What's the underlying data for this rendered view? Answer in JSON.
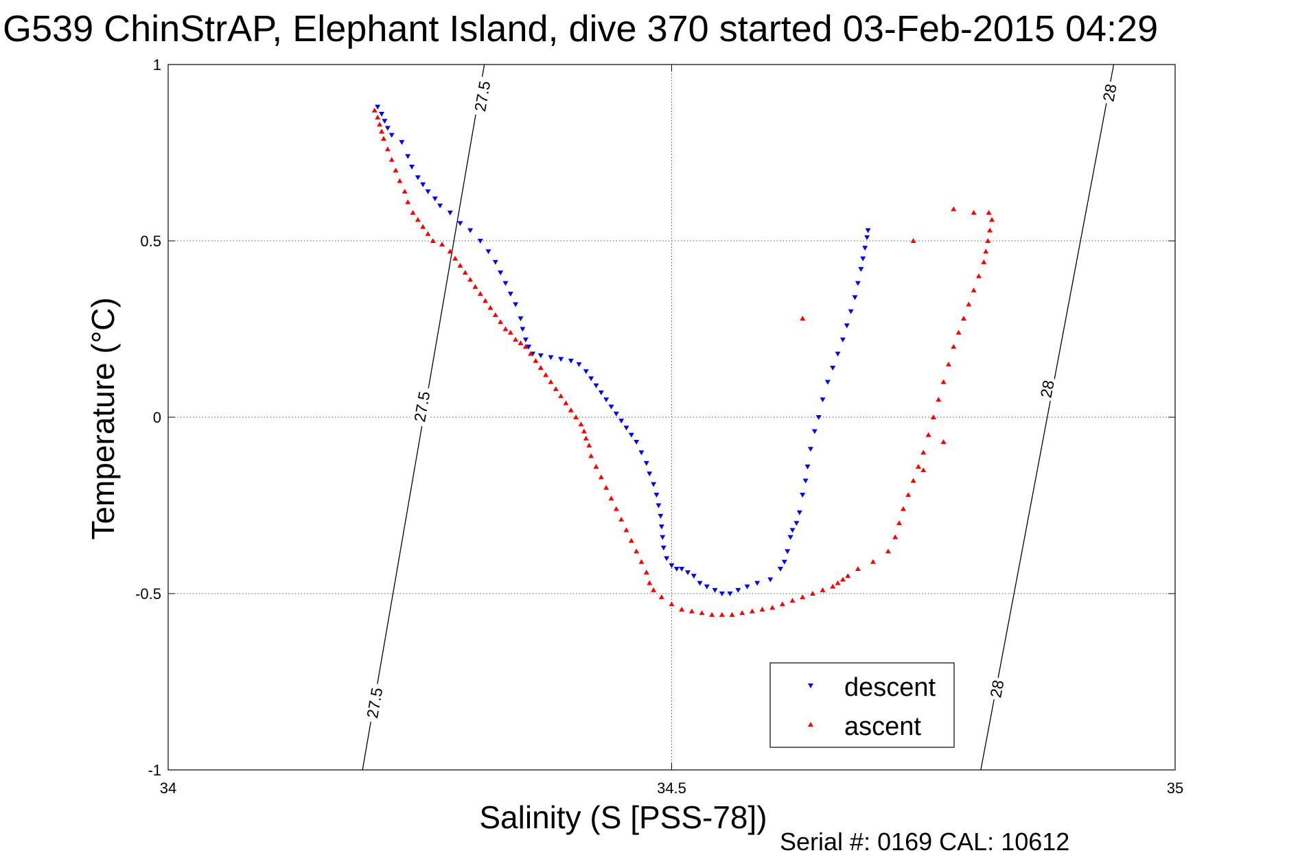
{
  "title": "G539 ChinStrAP, Elephant Island, dive 370 started 03-Feb-2015 04:29",
  "serial": "Serial #: 0169 CAL: 10612",
  "chart_data": {
    "type": "scatter",
    "title": "G539 ChinStrAP, Elephant Island, dive 370 started 03-Feb-2015 04:29",
    "xlabel": "Salinity (S [PSS-78])",
    "ylabel": "Temperature (°C)",
    "xlim": [
      34,
      35
    ],
    "ylim": [
      -1,
      1
    ],
    "xticks": [
      34,
      34.5,
      35
    ],
    "xtick_labels": [
      "34",
      "34.5",
      "35"
    ],
    "yticks": [
      -1,
      -0.5,
      0,
      0.5,
      1
    ],
    "ytick_labels": [
      "-1",
      "-0.5",
      "0",
      "0.5",
      "1"
    ],
    "grid": true,
    "legend": {
      "position": "bottom-right",
      "entries": [
        "descent",
        "ascent"
      ]
    },
    "contours": [
      {
        "level": "27.5",
        "points": [
          [
            34.193,
            -1.0
          ],
          [
            34.314,
            1.0
          ]
        ],
        "label_positions": [
          [
            34.205,
            -0.81
          ],
          [
            34.252,
            0.03
          ],
          [
            34.312,
            0.91
          ]
        ]
      },
      {
        "level": "28",
        "points": [
          [
            34.807,
            -1.0
          ],
          [
            34.939,
            1.0
          ]
        ],
        "label_positions": [
          [
            34.823,
            -0.77
          ],
          [
            34.873,
            0.08
          ],
          [
            34.935,
            0.92
          ]
        ]
      }
    ],
    "series": [
      {
        "name": "descent",
        "marker": "triangle-down",
        "color": "#0000ff",
        "points": [
          [
            34.208,
            0.88
          ],
          [
            34.212,
            0.86
          ],
          [
            34.215,
            0.84
          ],
          [
            34.218,
            0.82
          ],
          [
            34.222,
            0.8
          ],
          [
            34.232,
            0.78
          ],
          [
            34.238,
            0.74
          ],
          [
            34.242,
            0.71
          ],
          [
            34.248,
            0.68
          ],
          [
            34.253,
            0.66
          ],
          [
            34.258,
            0.64
          ],
          [
            34.265,
            0.62
          ],
          [
            34.27,
            0.6
          ],
          [
            34.28,
            0.58
          ],
          [
            34.29,
            0.55
          ],
          [
            34.3,
            0.53
          ],
          [
            34.31,
            0.5
          ],
          [
            34.318,
            0.47
          ],
          [
            34.325,
            0.44
          ],
          [
            34.33,
            0.41
          ],
          [
            34.335,
            0.38
          ],
          [
            34.34,
            0.35
          ],
          [
            34.345,
            0.32
          ],
          [
            34.35,
            0.28
          ],
          [
            34.352,
            0.25
          ],
          [
            34.355,
            0.22
          ],
          [
            34.358,
            0.2
          ],
          [
            34.362,
            0.18
          ],
          [
            34.37,
            0.175
          ],
          [
            34.38,
            0.17
          ],
          [
            34.39,
            0.165
          ],
          [
            34.4,
            0.16
          ],
          [
            34.408,
            0.15
          ],
          [
            34.415,
            0.13
          ],
          [
            34.42,
            0.11
          ],
          [
            34.425,
            0.09
          ],
          [
            34.43,
            0.07
          ],
          [
            34.435,
            0.05
          ],
          [
            34.44,
            0.03
          ],
          [
            34.445,
            0.01
          ],
          [
            34.45,
            -0.01
          ],
          [
            34.455,
            -0.03
          ],
          [
            34.46,
            -0.05
          ],
          [
            34.465,
            -0.07
          ],
          [
            34.47,
            -0.1
          ],
          [
            34.475,
            -0.13
          ],
          [
            34.478,
            -0.16
          ],
          [
            34.482,
            -0.19
          ],
          [
            34.485,
            -0.22
          ],
          [
            34.487,
            -0.25
          ],
          [
            34.489,
            -0.28
          ],
          [
            34.49,
            -0.31
          ],
          [
            34.491,
            -0.34
          ],
          [
            34.492,
            -0.37
          ],
          [
            34.495,
            -0.4
          ],
          [
            34.5,
            -0.42
          ],
          [
            34.505,
            -0.43
          ],
          [
            34.51,
            -0.43
          ],
          [
            34.516,
            -0.44
          ],
          [
            34.522,
            -0.45
          ],
          [
            34.528,
            -0.47
          ],
          [
            34.535,
            -0.48
          ],
          [
            34.543,
            -0.49
          ],
          [
            34.55,
            -0.5
          ],
          [
            34.558,
            -0.5
          ],
          [
            34.566,
            -0.49
          ],
          [
            34.575,
            -0.48
          ],
          [
            34.585,
            -0.47
          ],
          [
            34.598,
            -0.46
          ],
          [
            34.608,
            -0.43
          ],
          [
            34.612,
            -0.41
          ],
          [
            34.615,
            -0.38
          ],
          [
            34.618,
            -0.34
          ],
          [
            34.62,
            -0.32
          ],
          [
            34.624,
            -0.3
          ],
          [
            34.627,
            -0.27
          ],
          [
            34.63,
            -0.22
          ],
          [
            34.633,
            -0.18
          ],
          [
            34.635,
            -0.14
          ],
          [
            34.638,
            -0.09
          ],
          [
            34.642,
            -0.04
          ],
          [
            34.646,
            0.0
          ],
          [
            34.65,
            0.05
          ],
          [
            34.655,
            0.1
          ],
          [
            34.66,
            0.14
          ],
          [
            34.665,
            0.18
          ],
          [
            34.67,
            0.22
          ],
          [
            34.674,
            0.26
          ],
          [
            34.678,
            0.3
          ],
          [
            34.682,
            0.34
          ],
          [
            34.685,
            0.38
          ],
          [
            34.688,
            0.42
          ],
          [
            34.69,
            0.45
          ],
          [
            34.692,
            0.48
          ],
          [
            34.694,
            0.51
          ],
          [
            34.695,
            0.53
          ]
        ]
      },
      {
        "name": "ascent",
        "marker": "triangle-up",
        "color": "#ff0000",
        "points": [
          [
            34.205,
            0.87
          ],
          [
            34.208,
            0.85
          ],
          [
            34.21,
            0.83
          ],
          [
            34.212,
            0.81
          ],
          [
            34.214,
            0.79
          ],
          [
            34.218,
            0.76
          ],
          [
            34.222,
            0.73
          ],
          [
            34.226,
            0.7
          ],
          [
            34.23,
            0.67
          ],
          [
            34.235,
            0.64
          ],
          [
            34.238,
            0.61
          ],
          [
            34.243,
            0.58
          ],
          [
            34.248,
            0.56
          ],
          [
            34.253,
            0.54
          ],
          [
            34.258,
            0.52
          ],
          [
            34.263,
            0.5
          ],
          [
            34.272,
            0.49
          ],
          [
            34.28,
            0.47
          ],
          [
            34.285,
            0.45
          ],
          [
            34.29,
            0.43
          ],
          [
            34.295,
            0.41
          ],
          [
            34.3,
            0.39
          ],
          [
            34.305,
            0.37
          ],
          [
            34.31,
            0.35
          ],
          [
            34.315,
            0.33
          ],
          [
            34.32,
            0.31
          ],
          [
            34.325,
            0.29
          ],
          [
            34.33,
            0.27
          ],
          [
            34.335,
            0.25
          ],
          [
            34.34,
            0.24
          ],
          [
            34.345,
            0.22
          ],
          [
            34.35,
            0.21
          ],
          [
            34.355,
            0.2
          ],
          [
            34.36,
            0.18
          ],
          [
            34.365,
            0.16
          ],
          [
            34.37,
            0.14
          ],
          [
            34.375,
            0.12
          ],
          [
            34.38,
            0.1
          ],
          [
            34.385,
            0.08
          ],
          [
            34.39,
            0.06
          ],
          [
            34.395,
            0.04
          ],
          [
            34.4,
            0.02
          ],
          [
            34.405,
            0.0
          ],
          [
            34.41,
            -0.02
          ],
          [
            34.413,
            -0.04
          ],
          [
            34.415,
            -0.06
          ],
          [
            34.418,
            -0.08
          ],
          [
            34.42,
            -0.11
          ],
          [
            34.425,
            -0.14
          ],
          [
            34.43,
            -0.17
          ],
          [
            34.435,
            -0.2
          ],
          [
            34.44,
            -0.23
          ],
          [
            34.445,
            -0.26
          ],
          [
            34.45,
            -0.29
          ],
          [
            34.455,
            -0.32
          ],
          [
            34.46,
            -0.35
          ],
          [
            34.465,
            -0.38
          ],
          [
            34.47,
            -0.41
          ],
          [
            34.475,
            -0.44
          ],
          [
            34.478,
            -0.47
          ],
          [
            34.482,
            -0.49
          ],
          [
            34.49,
            -0.51
          ],
          [
            34.5,
            -0.53
          ],
          [
            34.51,
            -0.545
          ],
          [
            34.52,
            -0.55
          ],
          [
            34.53,
            -0.555
          ],
          [
            34.54,
            -0.56
          ],
          [
            34.55,
            -0.56
          ],
          [
            34.56,
            -0.56
          ],
          [
            34.57,
            -0.555
          ],
          [
            34.58,
            -0.55
          ],
          [
            34.59,
            -0.545
          ],
          [
            34.6,
            -0.54
          ],
          [
            34.61,
            -0.53
          ],
          [
            34.62,
            -0.52
          ],
          [
            34.63,
            -0.51
          ],
          [
            34.64,
            -0.5
          ],
          [
            34.65,
            -0.49
          ],
          [
            34.66,
            -0.48
          ],
          [
            34.665,
            -0.47
          ],
          [
            34.67,
            -0.46
          ],
          [
            34.675,
            -0.45
          ],
          [
            34.685,
            -0.43
          ],
          [
            34.7,
            -0.41
          ],
          [
            34.715,
            -0.38
          ],
          [
            34.722,
            -0.34
          ],
          [
            34.726,
            -0.3
          ],
          [
            34.73,
            -0.26
          ],
          [
            34.735,
            -0.22
          ],
          [
            34.74,
            -0.18
          ],
          [
            34.745,
            -0.14
          ],
          [
            34.75,
            -0.1
          ],
          [
            34.755,
            -0.05
          ],
          [
            34.76,
            0.0
          ],
          [
            34.765,
            0.05
          ],
          [
            34.77,
            0.1
          ],
          [
            34.775,
            0.15
          ],
          [
            34.78,
            0.2
          ],
          [
            34.785,
            0.24
          ],
          [
            34.79,
            0.28
          ],
          [
            34.795,
            0.32
          ],
          [
            34.8,
            0.36
          ],
          [
            34.805,
            0.4
          ],
          [
            34.81,
            0.44
          ],
          [
            34.812,
            0.47
          ],
          [
            34.814,
            0.5
          ],
          [
            34.816,
            0.53
          ],
          [
            34.818,
            0.56
          ],
          [
            34.815,
            0.58
          ],
          [
            34.8,
            0.58
          ],
          [
            34.78,
            0.59
          ],
          [
            34.74,
            0.5
          ],
          [
            34.63,
            0.28
          ],
          [
            34.75,
            -0.15
          ],
          [
            34.77,
            -0.07
          ]
        ]
      }
    ]
  }
}
